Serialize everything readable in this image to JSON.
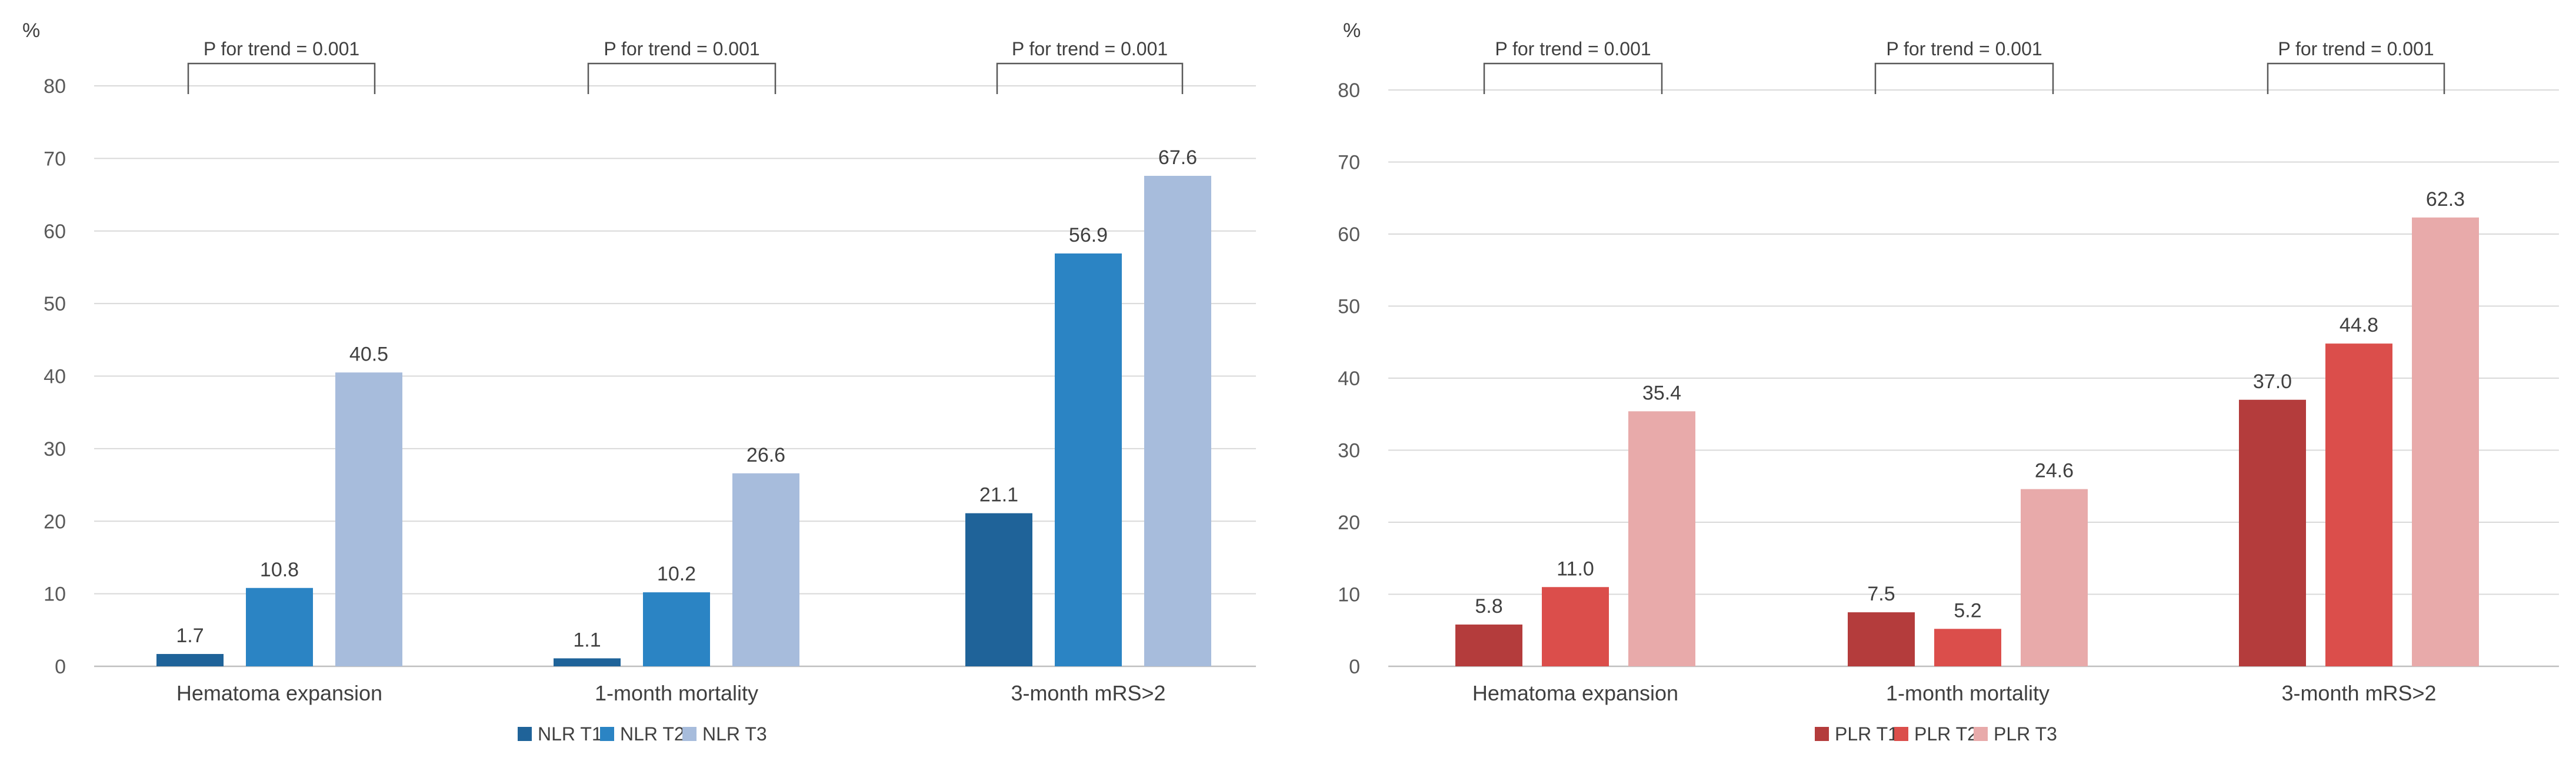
{
  "chart_data": [
    {
      "type": "bar",
      "ylabel": "%",
      "ylim": [
        0,
        80
      ],
      "yticks": [
        "0",
        "10",
        "20",
        "30",
        "40",
        "50",
        "60",
        "70",
        "80"
      ],
      "categories": [
        "Hematoma expansion",
        "1-month mortality",
        "3-month mRS>2"
      ],
      "series": [
        {
          "name": "NLR T1",
          "color": "#1f6399",
          "values": [
            1.7,
            1.1,
            21.1
          ],
          "labels": [
            "1.7",
            "1.1",
            "21.1"
          ]
        },
        {
          "name": "NLR T2",
          "color": "#2b84c4",
          "values": [
            10.8,
            10.2,
            56.9
          ],
          "labels": [
            "10.8",
            "10.2",
            "56.9"
          ]
        },
        {
          "name": "NLR T3",
          "color": "#a7bcdc",
          "values": [
            40.5,
            26.6,
            67.6
          ],
          "labels": [
            "40.5",
            "26.6",
            "67.6"
          ]
        }
      ],
      "annotations": [
        "P for trend = 0.001",
        "P for trend = 0.001",
        "P for trend = 0.001"
      ],
      "legend_position": "bottom",
      "grid": true
    },
    {
      "type": "bar",
      "ylabel": "%",
      "ylim": [
        0,
        80
      ],
      "yticks": [
        "0",
        "10",
        "20",
        "30",
        "40",
        "50",
        "60",
        "70",
        "80"
      ],
      "categories": [
        "Hematoma expansion",
        "1-month mortality",
        "3-month mRS>2"
      ],
      "series": [
        {
          "name": "PLR T1",
          "color": "#b43c3c",
          "values": [
            5.8,
            7.5,
            37.0
          ],
          "labels": [
            "5.8",
            "7.5",
            "37.0"
          ]
        },
        {
          "name": "PLR T2",
          "color": "#db4e4b",
          "values": [
            11.0,
            5.2,
            44.8
          ],
          "labels": [
            "11.0",
            "5.2",
            "44.8"
          ]
        },
        {
          "name": "PLR T3",
          "color": "#e8aaaa",
          "values": [
            35.4,
            24.6,
            62.3
          ],
          "labels": [
            "35.4",
            "24.6",
            "62.3"
          ]
        }
      ],
      "annotations": [
        "P for trend = 0.001",
        "P for trend = 0.001",
        "P for trend = 0.001"
      ],
      "legend_position": "bottom",
      "grid": true
    }
  ]
}
